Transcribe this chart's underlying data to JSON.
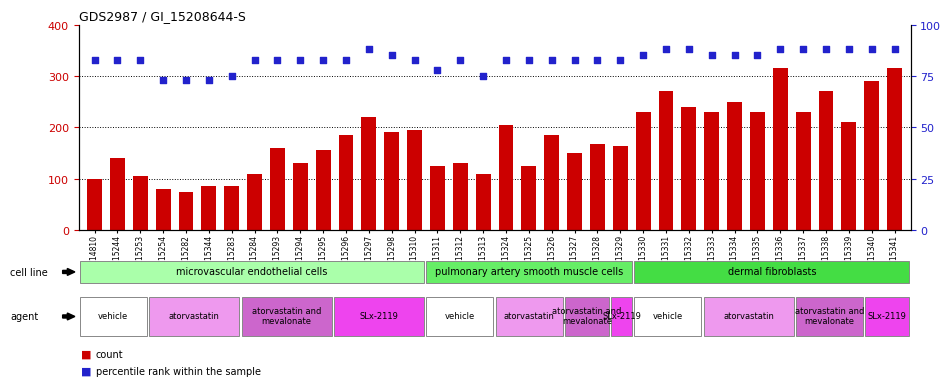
{
  "title": "GDS2987 / GI_15208644-S",
  "samples": [
    "GSM214810",
    "GSM215244",
    "GSM215253",
    "GSM215254",
    "GSM215282",
    "GSM215344",
    "GSM215283",
    "GSM215284",
    "GSM215293",
    "GSM215294",
    "GSM215295",
    "GSM215296",
    "GSM215297",
    "GSM215298",
    "GSM215310",
    "GSM215311",
    "GSM215312",
    "GSM215313",
    "GSM215324",
    "GSM215325",
    "GSM215326",
    "GSM215327",
    "GSM215328",
    "GSM215329",
    "GSM215330",
    "GSM215331",
    "GSM215332",
    "GSM215333",
    "GSM215334",
    "GSM215335",
    "GSM215336",
    "GSM215337",
    "GSM215338",
    "GSM215339",
    "GSM215340",
    "GSM215341"
  ],
  "counts": [
    100,
    140,
    105,
    80,
    75,
    85,
    85,
    110,
    160,
    130,
    155,
    185,
    220,
    190,
    195,
    125,
    130,
    110,
    205,
    125,
    185,
    150,
    168,
    163,
    230,
    270,
    240,
    230,
    250,
    230,
    315,
    230,
    270,
    210,
    290,
    315
  ],
  "percentile_ranks": [
    83,
    83,
    83,
    73,
    73,
    73,
    75,
    83,
    83,
    83,
    83,
    83,
    88,
    85,
    83,
    78,
    83,
    75,
    83,
    83,
    83,
    83,
    83,
    83,
    85,
    88,
    88,
    85,
    85,
    85,
    88,
    88,
    88,
    88,
    88,
    88
  ],
  "bar_color": "#cc0000",
  "dot_color": "#2222cc",
  "ylim_left": [
    0,
    400
  ],
  "ylim_right": [
    0,
    100
  ],
  "yticks_left": [
    0,
    100,
    200,
    300,
    400
  ],
  "yticks_right": [
    0,
    25,
    50,
    75,
    100
  ],
  "cell_line_groups": [
    {
      "label": "microvascular endothelial cells",
      "start": 0,
      "end": 15,
      "color": "#aaffaa"
    },
    {
      "label": "pulmonary artery smooth muscle cells",
      "start": 15,
      "end": 24,
      "color": "#66ee66"
    },
    {
      "label": "dermal fibroblasts",
      "start": 24,
      "end": 36,
      "color": "#44dd44"
    }
  ],
  "agent_groups": [
    {
      "label": "vehicle",
      "start": 0,
      "end": 3,
      "color": "#ffffff"
    },
    {
      "label": "atorvastatin",
      "start": 3,
      "end": 7,
      "color": "#ee99ee"
    },
    {
      "label": "atorvastatin and\nmevalonate",
      "start": 7,
      "end": 11,
      "color": "#cc66cc"
    },
    {
      "label": "SLx-2119",
      "start": 11,
      "end": 15,
      "color": "#ee44ee"
    },
    {
      "label": "vehicle",
      "start": 15,
      "end": 18,
      "color": "#ffffff"
    },
    {
      "label": "atorvastatin",
      "start": 18,
      "end": 21,
      "color": "#ee99ee"
    },
    {
      "label": "atorvastatin and\nmevalonate",
      "start": 21,
      "end": 23,
      "color": "#cc66cc"
    },
    {
      "label": "SLx-2119",
      "start": 23,
      "end": 24,
      "color": "#ee44ee"
    },
    {
      "label": "vehicle",
      "start": 24,
      "end": 27,
      "color": "#ffffff"
    },
    {
      "label": "atorvastatin",
      "start": 27,
      "end": 31,
      "color": "#ee99ee"
    },
    {
      "label": "atorvastatin and\nmevalonate",
      "start": 31,
      "end": 34,
      "color": "#cc66cc"
    },
    {
      "label": "SLx-2119",
      "start": 34,
      "end": 36,
      "color": "#ee44ee"
    }
  ]
}
